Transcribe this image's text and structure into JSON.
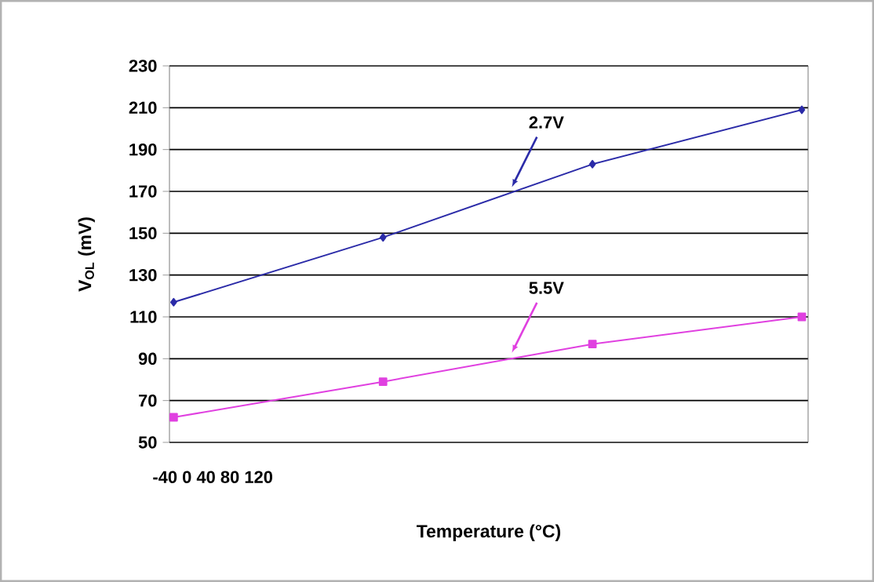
{
  "chart_data": {
    "type": "line",
    "xlabel": "Temperature (°C)",
    "ylabel": "V$_{OL}$ (mV)",
    "categories": [
      null,
      null,
      null,
      null
    ],
    "ylim": [
      50,
      230
    ],
    "yticks": [
      50,
      70,
      90,
      110,
      130,
      150,
      170,
      190,
      210,
      230
    ],
    "grid": "y",
    "line_style": "solid",
    "series": [
      {
        "color": "#2b2ba8",
        "marker": "diamond",
        "values": [
          117,
          148,
          183,
          209
        ]
      },
      {
        "color": "#e040e0",
        "marker": "square",
        "values": [
          62,
          79,
          97,
          110
        ]
      }
    ],
    "annotations": [
      "-40 0 40 80 120",
      "2.7V",
      "5.5V"
    ]
  }
}
